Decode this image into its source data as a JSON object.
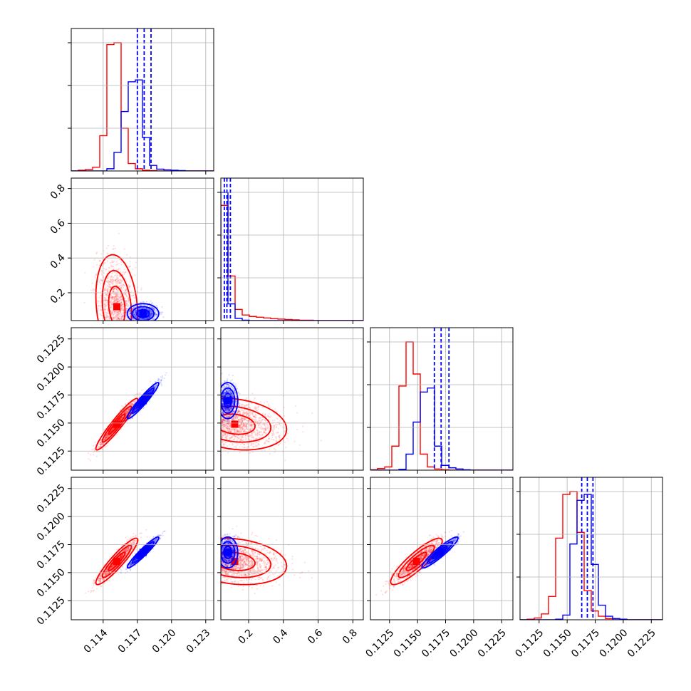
{
  "chart_data": {
    "type": "scatter",
    "kind": "corner plot (pairwise histograms and 2D scatter/contours)",
    "colors": {
      "red": "#ff0000",
      "blue": "#0000ff"
    },
    "grid": true,
    "parameters": [
      "",
      "",
      "",
      ""
    ],
    "ranges": [
      [
        0.1112,
        0.1237
      ],
      [
        0.04,
        0.86
      ],
      [
        0.1108,
        0.1235
      ],
      [
        0.1108,
        0.1235
      ]
    ],
    "tick_labels": [
      [
        "0.114",
        "0.117",
        "0.120",
        "0.123"
      ],
      [
        "0.2",
        "0.4",
        "0.6",
        "0.8"
      ],
      [
        "0.1125",
        "0.1150",
        "0.1175",
        "0.1200",
        "0.1225"
      ],
      [
        "0.1125",
        "0.1150",
        "0.1175",
        "0.1200",
        "0.1225"
      ]
    ],
    "tick_values": [
      [
        0.114,
        0.117,
        0.12,
        0.123
      ],
      [
        0.2,
        0.4,
        0.6,
        0.8
      ],
      [
        0.1125,
        0.115,
        0.1175,
        0.12,
        0.1225
      ],
      [
        0.1125,
        0.115,
        0.1175,
        0.12,
        0.1225
      ]
    ],
    "series": [
      {
        "name": "",
        "color": "#ff0000",
        "means": [
          0.1152,
          0.12,
          0.1149,
          0.116
        ],
        "sds": [
          0.0008,
          0.13,
          0.001,
          0.0009
        ],
        "correlations": [
          [
            0,
            1,
            -0.2
          ],
          [
            0,
            2,
            0.95
          ],
          [
            0,
            3,
            0.92
          ],
          [
            1,
            2,
            -0.2
          ],
          [
            1,
            3,
            -0.2
          ],
          [
            2,
            3,
            0.88
          ]
        ],
        "histograms": [
          [
            0,
            2,
            4,
            10,
            95,
            340,
            345,
            115,
            20,
            6,
            2,
            1,
            0,
            0,
            0,
            0,
            0,
            0,
            0,
            0
          ],
          [
            310,
            120,
            30,
            15,
            11,
            9,
            7,
            5,
            4,
            3,
            2,
            1,
            1,
            0,
            0,
            0,
            0,
            0,
            0,
            0
          ],
          [
            1,
            4,
            8,
            60,
            210,
            320,
            240,
            40,
            8,
            3,
            1,
            0,
            0,
            0,
            0,
            0,
            0,
            0,
            0,
            0
          ],
          [
            0,
            1,
            3,
            10,
            40,
            140,
            215,
            220,
            150,
            50,
            15,
            6,
            2,
            0,
            0,
            0,
            0,
            0,
            0,
            0
          ]
        ]
      },
      {
        "name": "",
        "color": "#0000ff",
        "means": [
          0.1175,
          0.08,
          0.117,
          0.1168
        ],
        "sds": [
          0.0006,
          0.025,
          0.0007,
          0.0006
        ],
        "correlations": [
          [
            0,
            1,
            0.0
          ],
          [
            0,
            2,
            0.95
          ],
          [
            0,
            3,
            0.95
          ],
          [
            1,
            2,
            0.0
          ],
          [
            1,
            3,
            0.0
          ],
          [
            2,
            3,
            0.93
          ]
        ],
        "histograms": [
          [
            0,
            0,
            0,
            0,
            0,
            6,
            50,
            160,
            240,
            245,
            90,
            15,
            5,
            3,
            2,
            1,
            0,
            0,
            0,
            0
          ],
          [
            345,
            45,
            6,
            1,
            0,
            0,
            0,
            0,
            0,
            0,
            0,
            0,
            0,
            0,
            0,
            0,
            0,
            0,
            0,
            0
          ],
          [
            0,
            0,
            0,
            0,
            2,
            40,
            120,
            195,
            205,
            60,
            12,
            6,
            3,
            1,
            0,
            0,
            0,
            0,
            0,
            0
          ],
          [
            0,
            0,
            0,
            0,
            0,
            1,
            8,
            130,
            205,
            215,
            95,
            25,
            6,
            2,
            1,
            0,
            0,
            0,
            0,
            0
          ]
        ],
        "quantile_lines": [
          [
            0.117,
            0.1176,
            0.1182
          ],
          [
            0.06,
            0.075,
            0.095
          ],
          [
            0.1165,
            0.1171,
            0.1178
          ],
          [
            0.1163,
            0.1168,
            0.1173
          ]
        ]
      }
    ]
  }
}
